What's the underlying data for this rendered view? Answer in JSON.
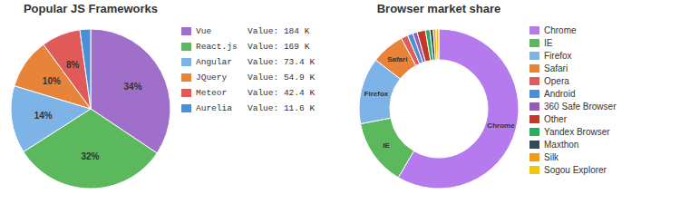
{
  "chart_data": [
    {
      "type": "pie",
      "title": "Popular JS Frameworks",
      "categories": [
        "Vue       Value: 184 K",
        "React.js  Value: 169 K",
        "Angular   Value: 73.4 K",
        "JQuery    Value: 54.9 K",
        "Meteor    Value: 42.4 K",
        "Aurelia   Value: 11.6 K"
      ],
      "values": [
        184,
        169,
        73.4,
        54.9,
        42.4,
        11.6
      ],
      "value_labels": [
        "34%",
        "32%",
        "14%",
        "10%",
        "8%",
        null
      ],
      "colors": [
        "#a06fc9",
        "#5cb85c",
        "#7eb3e8",
        "#e8843a",
        "#e05a5a",
        "#4a90d9"
      ],
      "legend": "right"
    },
    {
      "type": "donut",
      "title": "Browser market share",
      "categories": [
        "Chrome",
        "IE",
        "Firefox",
        "Safari",
        "Opera",
        "Android",
        "360 Safe Browser",
        "Other",
        "Yandex Browser",
        "Maxthon",
        "Silk",
        "Sogou Explorer"
      ],
      "values": [
        52,
        12,
        12,
        6,
        1.2,
        1.0,
        0.8,
        1.5,
        0.8,
        0.6,
        0.5,
        0.5
      ],
      "slice_labels": [
        "Chrome",
        "IE",
        "Firefox",
        "Safari",
        null,
        null,
        null,
        null,
        null,
        null,
        null,
        null
      ],
      "colors": [
        "#b57bee",
        "#5cb85c",
        "#7eb3e8",
        "#e8843a",
        "#e05a5a",
        "#4a90d9",
        "#9b59b6",
        "#c0392b",
        "#27ae60",
        "#34495e",
        "#f39c12",
        "#f1c40f"
      ],
      "legend": "right"
    }
  ]
}
